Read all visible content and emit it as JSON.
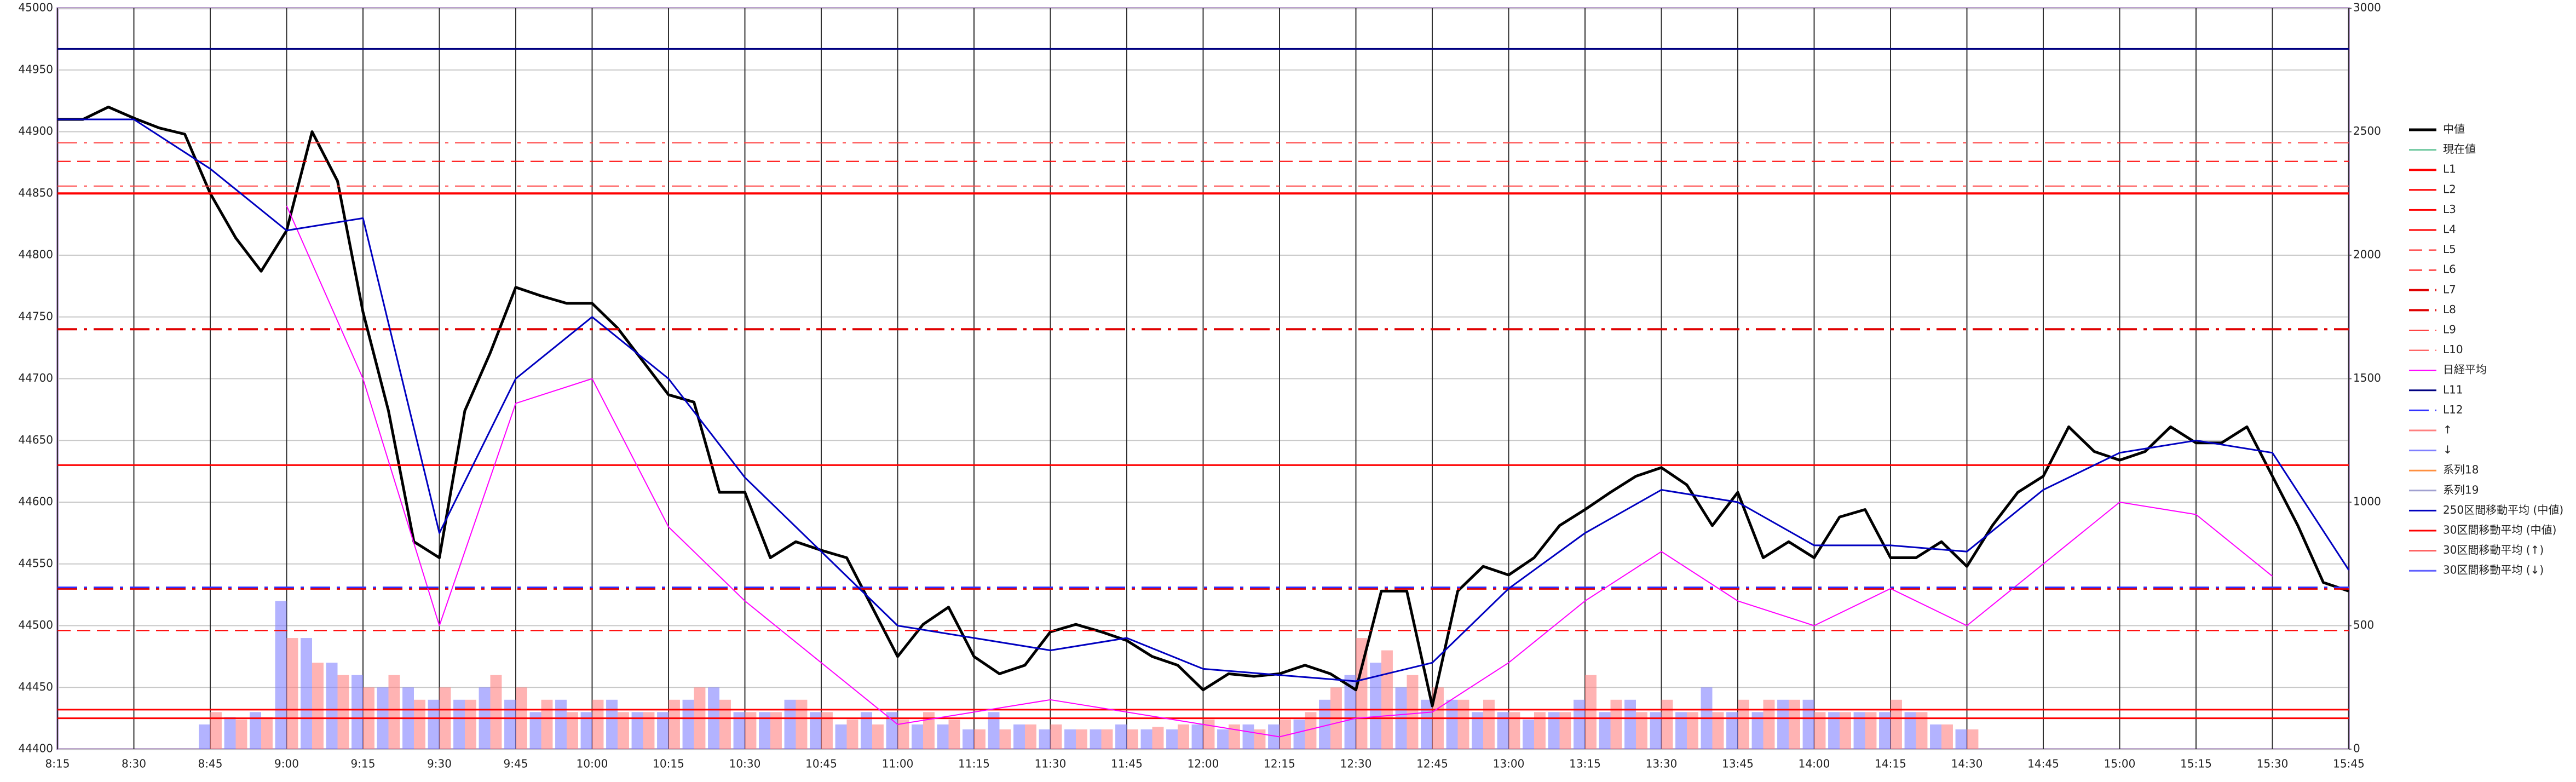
{
  "chart_data": {
    "type": "line",
    "xlim": [
      "8:15",
      "15:45"
    ],
    "xticks": [
      "8:15",
      "8:30",
      "8:45",
      "9:00",
      "9:15",
      "9:30",
      "9:45",
      "10:00",
      "10:15",
      "10:30",
      "10:45",
      "11:00",
      "11:15",
      "11:30",
      "11:45",
      "12:00",
      "12:15",
      "12:30",
      "12:45",
      "13:00",
      "13:15",
      "13:30",
      "13:45",
      "14:00",
      "14:15",
      "14:30",
      "14:45",
      "15:00",
      "15:15",
      "15:30",
      "15:45"
    ],
    "ylim": [
      44400,
      45000
    ],
    "yticks": [
      44400,
      44450,
      44500,
      44550,
      44600,
      44650,
      44700,
      44750,
      44800,
      44850,
      44900,
      44950,
      45000
    ],
    "y2lim": [
      0,
      3000
    ],
    "y2ticks": [
      0,
      500,
      1000,
      1500,
      2000,
      2500,
      3000
    ],
    "grid": true,
    "x": [
      "8:15",
      "8:20",
      "8:25",
      "8:30",
      "8:35",
      "8:40",
      "8:45",
      "8:50",
      "8:55",
      "9:00",
      "9:05",
      "9:10",
      "9:15",
      "9:20",
      "9:25",
      "9:30",
      "9:35",
      "9:40",
      "9:45",
      "9:50",
      "9:55",
      "10:00",
      "10:05",
      "10:10",
      "10:15",
      "10:20",
      "10:25",
      "10:30",
      "10:35",
      "10:40",
      "10:45",
      "10:50",
      "10:55",
      "11:00",
      "11:05",
      "11:10",
      "11:15",
      "11:20",
      "11:25",
      "11:30",
      "11:35",
      "11:40",
      "11:45",
      "11:50",
      "11:55",
      "12:00",
      "12:05",
      "12:10",
      "12:15",
      "12:20",
      "12:25",
      "12:30",
      "12:35",
      "12:40",
      "12:45",
      "12:50",
      "12:55",
      "13:00",
      "13:05",
      "13:10",
      "13:15",
      "13:20",
      "13:25",
      "13:30",
      "13:35",
      "13:40",
      "13:45",
      "13:50",
      "13:55",
      "14:00",
      "14:05",
      "14:10",
      "14:15",
      "14:20",
      "14:25",
      "14:30",
      "14:35",
      "14:40",
      "14:45",
      "14:50",
      "14:55",
      "15:00",
      "15:05",
      "15:10",
      "15:15",
      "15:20",
      "15:25",
      "15:30",
      "15:35",
      "15:40",
      "15:45"
    ],
    "series": [
      {
        "name": "中値",
        "color": "#000000",
        "width": 5,
        "values": [
          44910,
          44910,
          44920,
          44911,
          44903,
          44898,
          44850,
          44814,
          44787,
          44820,
          44900,
          44860,
          44754,
          44674,
          44568,
          44555,
          44674,
          44721,
          44774,
          44767,
          44761,
          44761,
          44741,
          44714,
          44687,
          44681,
          44608,
          44608,
          44555,
          44568,
          44561,
          44555,
          44515,
          44475,
          44501,
          44515,
          44475,
          44461,
          44468,
          44495,
          44501,
          44495,
          44488,
          44475,
          44468,
          44448,
          44461,
          44459,
          44461,
          44468,
          44461,
          44448,
          44528,
          44528,
          44435,
          44528,
          44548,
          44541,
          44555,
          44581,
          44594,
          44608,
          44621,
          44628,
          44614,
          44581,
          44608,
          44555,
          44568,
          44555,
          44588,
          44594,
          44555,
          44555,
          44568,
          44548,
          44581,
          44608,
          44621,
          44661,
          44641,
          44634,
          44641,
          44661,
          44648,
          44648,
          44661,
          44621,
          44581,
          44535,
          44528
        ]
      },
      {
        "name": "現在値",
        "color": "#70c8a0"
      },
      {
        "name": "L1",
        "color": "#ff0000",
        "dash": "solid",
        "width": 4,
        "level": 44850
      },
      {
        "name": "L2",
        "color": "#ff0000",
        "dash": "solid",
        "width": 3,
        "level": 44630
      },
      {
        "name": "L3",
        "color": "#ff0000",
        "dash": "solid",
        "width": 3,
        "level": 44432
      },
      {
        "name": "L4",
        "color": "#ff0000",
        "dash": "solid",
        "width": 3,
        "level": 44425
      },
      {
        "name": "L5",
        "color": "#ff0000",
        "dash": "dash",
        "width": 2,
        "level": 44876
      },
      {
        "name": "L6",
        "color": "#ff0000",
        "dash": "dash",
        "width": 2,
        "level": 44496
      },
      {
        "name": "L7",
        "color": "#e00000",
        "dash": "dashdot",
        "width": 4,
        "level": 44740
      },
      {
        "name": "L8",
        "color": "#e00000",
        "dash": "dashdot",
        "width": 4,
        "level": 44530
      },
      {
        "name": "L9",
        "color": "#ff4040",
        "dash": "dashdot",
        "width": 2,
        "level": 44891
      },
      {
        "name": "L10",
        "color": "#ff4040",
        "dash": "dashdot",
        "width": 2,
        "level": 44856
      },
      {
        "name": "日経平均",
        "color": "#ff00ff",
        "width": 2,
        "x": [
          "9:00",
          "9:15",
          "9:30",
          "9:45",
          "10:00",
          "10:15",
          "10:30",
          "10:45",
          "11:00",
          "11:15",
          "11:30",
          "11:45",
          "12:00",
          "12:15",
          "12:30",
          "12:45",
          "13:00",
          "13:15",
          "13:30",
          "13:45",
          "14:00",
          "14:15",
          "14:30",
          "14:45",
          "15:00",
          "15:15",
          "15:30"
        ],
        "values": [
          44840,
          44700,
          44500,
          44680,
          44700,
          44580,
          44520,
          44470,
          44420,
          44430,
          44440,
          44430,
          44420,
          44410,
          44425,
          44430,
          44470,
          44520,
          44560,
          44520,
          44500,
          44530,
          44500,
          44550,
          44600,
          44590,
          44540
        ]
      },
      {
        "name": "L11",
        "color": "#000080",
        "dash": "solid",
        "width": 3,
        "level": 44967
      },
      {
        "name": "L12",
        "color": "#3030ff",
        "dash": "dashdot",
        "width": 3,
        "level": 44531
      },
      {
        "name": "↑",
        "color": "#ff8080",
        "axis": "y2",
        "values": [
          0,
          0,
          0,
          0,
          0,
          0,
          150,
          120,
          130,
          450,
          350,
          300,
          250,
          300,
          200,
          250,
          200,
          300,
          250,
          200,
          150,
          200,
          150,
          150,
          200,
          250,
          200,
          150,
          150,
          200,
          150,
          120,
          100,
          120,
          150,
          120,
          80,
          80,
          100,
          100,
          80,
          80,
          80,
          90,
          100,
          120,
          100,
          80,
          120,
          150,
          250,
          450,
          400,
          300,
          250,
          200,
          200,
          150,
          150,
          150,
          300,
          200,
          150,
          200,
          150,
          150,
          200,
          200,
          200,
          150,
          150,
          150,
          200,
          150,
          100,
          80,
          0,
          0,
          0,
          0,
          0,
          0,
          0,
          0,
          0,
          0,
          0,
          0,
          0,
          0,
          0
        ]
      },
      {
        "name": "↓",
        "color": "#8080ff",
        "axis": "y2",
        "values": [
          0,
          0,
          0,
          0,
          0,
          0,
          100,
          130,
          150,
          600,
          450,
          350,
          300,
          250,
          250,
          200,
          200,
          250,
          200,
          150,
          200,
          150,
          200,
          150,
          150,
          200,
          250,
          150,
          150,
          200,
          150,
          100,
          150,
          150,
          100,
          100,
          80,
          150,
          100,
          80,
          80,
          80,
          100,
          80,
          80,
          100,
          80,
          100,
          100,
          120,
          200,
          300,
          350,
          250,
          200,
          200,
          150,
          150,
          120,
          150,
          200,
          150,
          200,
          150,
          150,
          250,
          150,
          150,
          200,
          200,
          150,
          150,
          150,
          150,
          100,
          80,
          0,
          0,
          0,
          0,
          0,
          0,
          0,
          0,
          0,
          0,
          0,
          0,
          0,
          0,
          0
        ]
      },
      {
        "name": "系列18",
        "color": "#ff9040"
      },
      {
        "name": "系列19",
        "color": "#a0a0d0"
      },
      {
        "name": "250区間移動平均 (中値)",
        "color": "#0000c0",
        "width": 3,
        "x": [
          "8:15",
          "8:30",
          "8:45",
          "9:00",
          "9:15",
          "9:30",
          "9:45",
          "10:00",
          "10:15",
          "10:30",
          "10:45",
          "11:00",
          "11:15",
          "11:30",
          "11:45",
          "12:00",
          "12:15",
          "12:30",
          "12:45",
          "13:00",
          "13:15",
          "13:30",
          "13:45",
          "14:00",
          "14:15",
          "14:30",
          "14:45",
          "15:00",
          "15:15",
          "15:30",
          "15:45"
        ],
        "values": [
          44910,
          44910,
          44870,
          44820,
          44830,
          44575,
          44700,
          44750,
          44700,
          44620,
          44560,
          44500,
          44490,
          44480,
          44490,
          44465,
          44460,
          44455,
          44470,
          44530,
          44575,
          44610,
          44600,
          44565,
          44565,
          44560,
          44610,
          44640,
          44650,
          44640,
          44545
        ]
      },
      {
        "name": "30区間移動平均 (中値)",
        "color": "#ff0000"
      },
      {
        "name": "30区間移動平均 (↑)",
        "color": "#ff6060"
      },
      {
        "name": "30区間移動平均 (↓)",
        "color": "#6060ff"
      }
    ]
  }
}
